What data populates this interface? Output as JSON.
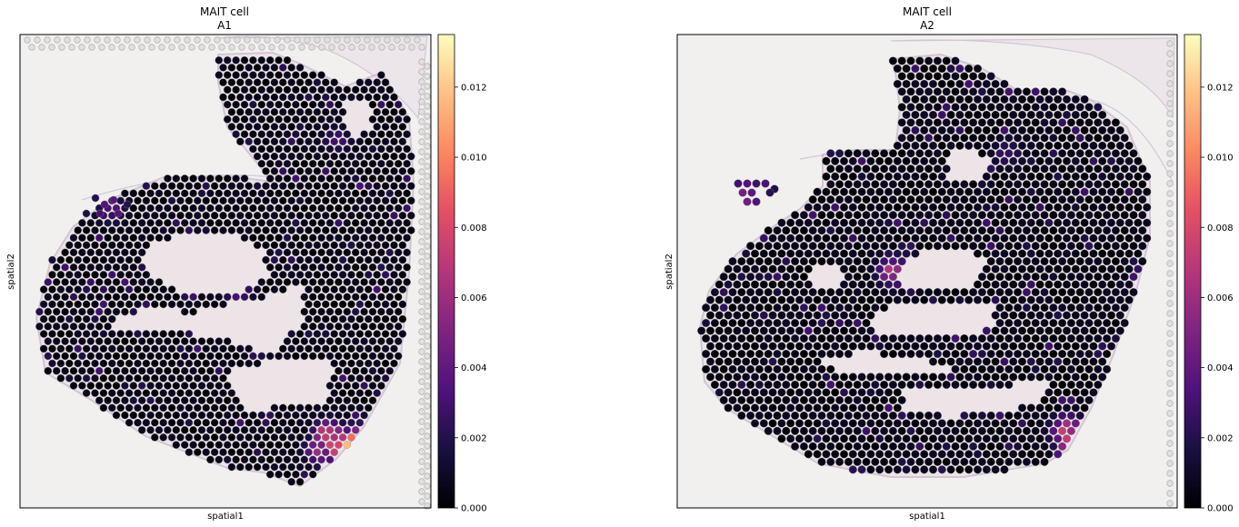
{
  "chart_data": [
    {
      "type": "scatter",
      "plot_kind": "spatial-spot-map",
      "title": "MAIT cell",
      "subtitle": "A1",
      "xlabel": "spatial1",
      "ylabel": "spatial2",
      "colormap": "magma",
      "colorbar": {
        "min": 0.0,
        "max": 0.0135,
        "ticks": [
          0.0,
          0.002,
          0.004,
          0.006,
          0.008,
          0.01,
          0.012
        ],
        "tick_labels": [
          "0.000",
          "0.002",
          "0.004",
          "0.006",
          "0.008",
          "0.010",
          "0.012"
        ]
      },
      "hotspots": [
        {
          "x": 0.8,
          "y": 0.13,
          "value": 0.0135
        },
        {
          "x": 0.75,
          "y": 0.15,
          "value": 0.0095
        },
        {
          "x": 0.78,
          "y": 0.12,
          "value": 0.008
        },
        {
          "x": 0.82,
          "y": 0.15,
          "value": 0.007
        },
        {
          "x": 0.73,
          "y": 0.12,
          "value": 0.006
        },
        {
          "x": 0.53,
          "y": 0.46,
          "value": 0.004
        },
        {
          "x": 0.22,
          "y": 0.63,
          "value": 0.0035
        },
        {
          "x": 0.77,
          "y": 0.78,
          "value": 0.003
        }
      ]
    },
    {
      "type": "scatter",
      "plot_kind": "spatial-spot-map",
      "title": "MAIT cell",
      "subtitle": "A2",
      "xlabel": "spatial1",
      "ylabel": "spatial2",
      "colormap": "magma",
      "colorbar": {
        "min": 0.0,
        "max": 0.0135,
        "ticks": [
          0.0,
          0.002,
          0.004,
          0.006,
          0.008,
          0.01,
          0.012
        ],
        "tick_labels": [
          "0.000",
          "0.002",
          "0.004",
          "0.006",
          "0.008",
          "0.010",
          "0.012"
        ]
      },
      "hotspots": [
        {
          "x": 0.8,
          "y": 0.12,
          "value": 0.0135
        },
        {
          "x": 0.78,
          "y": 0.16,
          "value": 0.008
        },
        {
          "x": 0.83,
          "y": 0.15,
          "value": 0.007
        },
        {
          "x": 0.43,
          "y": 0.5,
          "value": 0.0065
        },
        {
          "x": 0.46,
          "y": 0.5,
          "value": 0.005
        },
        {
          "x": 0.14,
          "y": 0.66,
          "value": 0.0035
        },
        {
          "x": 0.66,
          "y": 0.75,
          "value": 0.003
        }
      ]
    }
  ]
}
